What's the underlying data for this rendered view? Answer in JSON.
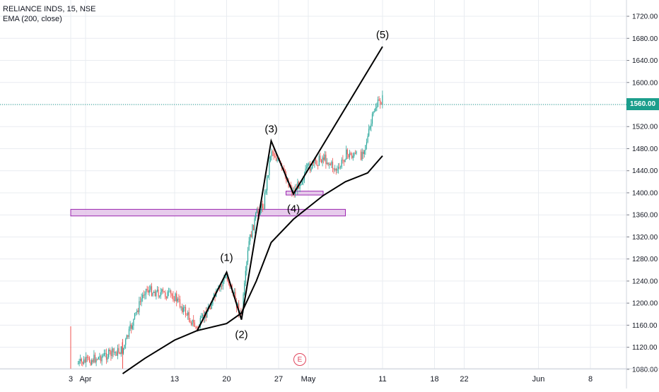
{
  "legend": {
    "symbol": "RELIANCE INDS, 15, NSE",
    "indicator": "EMA (200, close)"
  },
  "colors": {
    "grid": "#e9ecf1",
    "candle_up": "#26a69a",
    "candle_down": "#ef5350",
    "wave_line": "#000000",
    "zone_fill": "#e1bee7",
    "zone_border": "#9c27b0",
    "last_price": "#1b9e8c",
    "earnings": "#e0455d"
  },
  "chart_data": {
    "type": "candlestick",
    "title": "RELIANCE INDS, 15, NSE",
    "y_axis_ticks": [
      "1080.00",
      "1120.00",
      "1160.00",
      "1200.00",
      "1240.00",
      "1280.00",
      "1320.00",
      "1360.00",
      "1400.00",
      "1440.00",
      "1480.00",
      "1520.00",
      "1560.00",
      "1600.00",
      "1640.00",
      "1680.00",
      "1720.00"
    ],
    "x_axis_ticks": [
      "3",
      "Apr",
      "13",
      "20",
      "27",
      "May",
      "11",
      "18",
      "22",
      "Jun",
      "8"
    ],
    "ylim": [
      1071,
      1740
    ],
    "last_price": {
      "value": 1560,
      "label": "1560.00"
    },
    "wave_points": [
      {
        "label": "(1)",
        "date": "Apr 20",
        "price": 1256
      },
      {
        "label": "(2)",
        "date": "Apr 22",
        "price": 1170
      },
      {
        "label": "(3)",
        "date": "Apr 26",
        "price": 1494
      },
      {
        "label": "(4)",
        "date": "Apr 29",
        "price": 1398
      },
      {
        "label": "(5)",
        "date": "May 11",
        "price": 1665
      }
    ],
    "wave_line_start": {
      "date": "Apr 16",
      "price": 1149
    },
    "support_zones": [
      {
        "from": "Mar 30",
        "to": "May 6",
        "low": 1358,
        "high": 1370
      },
      {
        "from": "Apr 28",
        "to": "May 3",
        "low": 1396,
        "high": 1403
      }
    ],
    "ema_200": [
      [
        "Apr 6",
        1072
      ],
      [
        "Apr 9",
        1100
      ],
      [
        "Apr 13",
        1133
      ],
      [
        "Apr 16",
        1150
      ],
      [
        "Apr 20",
        1163
      ],
      [
        "Apr 22",
        1182
      ],
      [
        "Apr 24",
        1240
      ],
      [
        "Apr 26",
        1310
      ],
      [
        "Apr 29",
        1352
      ],
      [
        "May 3",
        1395
      ],
      [
        "May 6",
        1420
      ],
      [
        "May 9",
        1436
      ],
      [
        "May 11",
        1467
      ]
    ],
    "price_path": [
      [
        "Mar 31",
        1090
      ],
      [
        "Apr 6",
        1115
      ],
      [
        "Apr 9",
        1225
      ],
      [
        "Apr 13",
        1212
      ],
      [
        "Apr 16",
        1153
      ],
      [
        "Apr 20",
        1250
      ],
      [
        "Apr 22",
        1175
      ],
      [
        "Apr 23",
        1310
      ],
      [
        "Apr 24",
        1360
      ],
      [
        "Apr 25",
        1380
      ],
      [
        "Apr 26",
        1480
      ],
      [
        "Apr 27",
        1455
      ],
      [
        "Apr 29",
        1400
      ],
      [
        "May 1",
        1445
      ],
      [
        "May 3",
        1465
      ],
      [
        "May 5",
        1438
      ],
      [
        "May 6",
        1470
      ],
      [
        "May 8",
        1465
      ],
      [
        "May 9",
        1500
      ],
      [
        "May 10",
        1555
      ],
      [
        "May 11",
        1570
      ]
    ],
    "annotation": "E"
  }
}
